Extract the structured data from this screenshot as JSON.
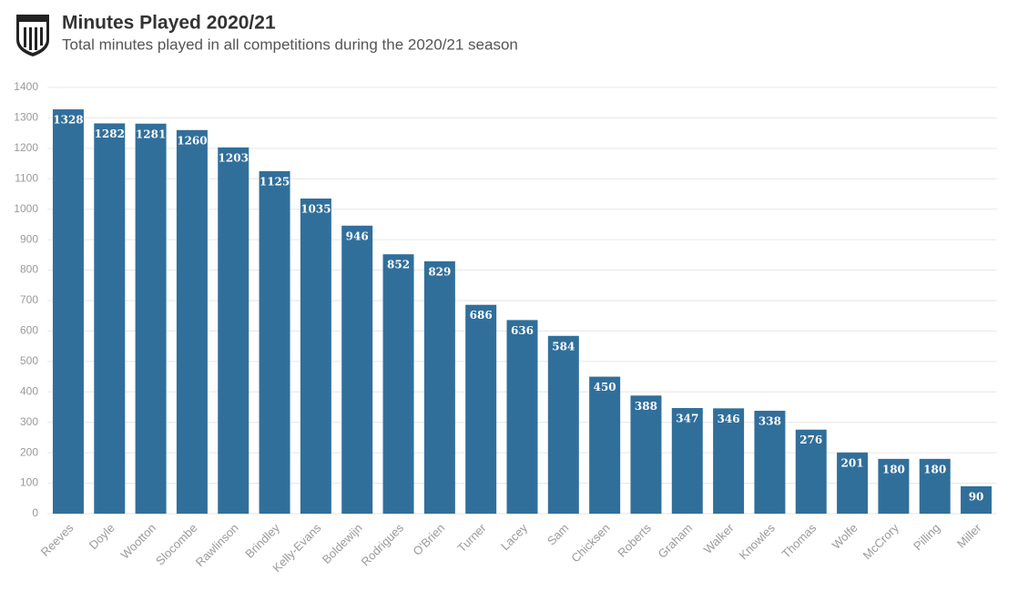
{
  "chart_data": {
    "type": "bar",
    "title": "Minutes Played 2020/21",
    "subtitle": "Total minutes played in all competitions during the 2020/21 season",
    "categories": [
      "Reeves",
      "Doyle",
      "Wootton",
      "Slocombe",
      "Rawlinson",
      "Brindley",
      "Kelly-Evans",
      "Boldewijn",
      "Rodrigues",
      "O'Brien",
      "Turner",
      "Lacey",
      "Sam",
      "Chicksen",
      "Roberts",
      "Graham",
      "Walker",
      "Knowles",
      "Thomas",
      "Wolfe",
      "McCrory",
      "Pilling",
      "Miller"
    ],
    "values": [
      1328,
      1282,
      1281,
      1260,
      1203,
      1125,
      1035,
      946,
      852,
      829,
      686,
      636,
      584,
      450,
      388,
      347,
      346,
      338,
      276,
      201,
      180,
      180,
      90
    ],
    "color": "#316f9b",
    "ylim": [
      0,
      1400
    ],
    "yticks": [
      0,
      100,
      200,
      300,
      400,
      500,
      600,
      700,
      800,
      900,
      1000,
      1100,
      1200,
      1300,
      1400
    ],
    "grid": true
  }
}
